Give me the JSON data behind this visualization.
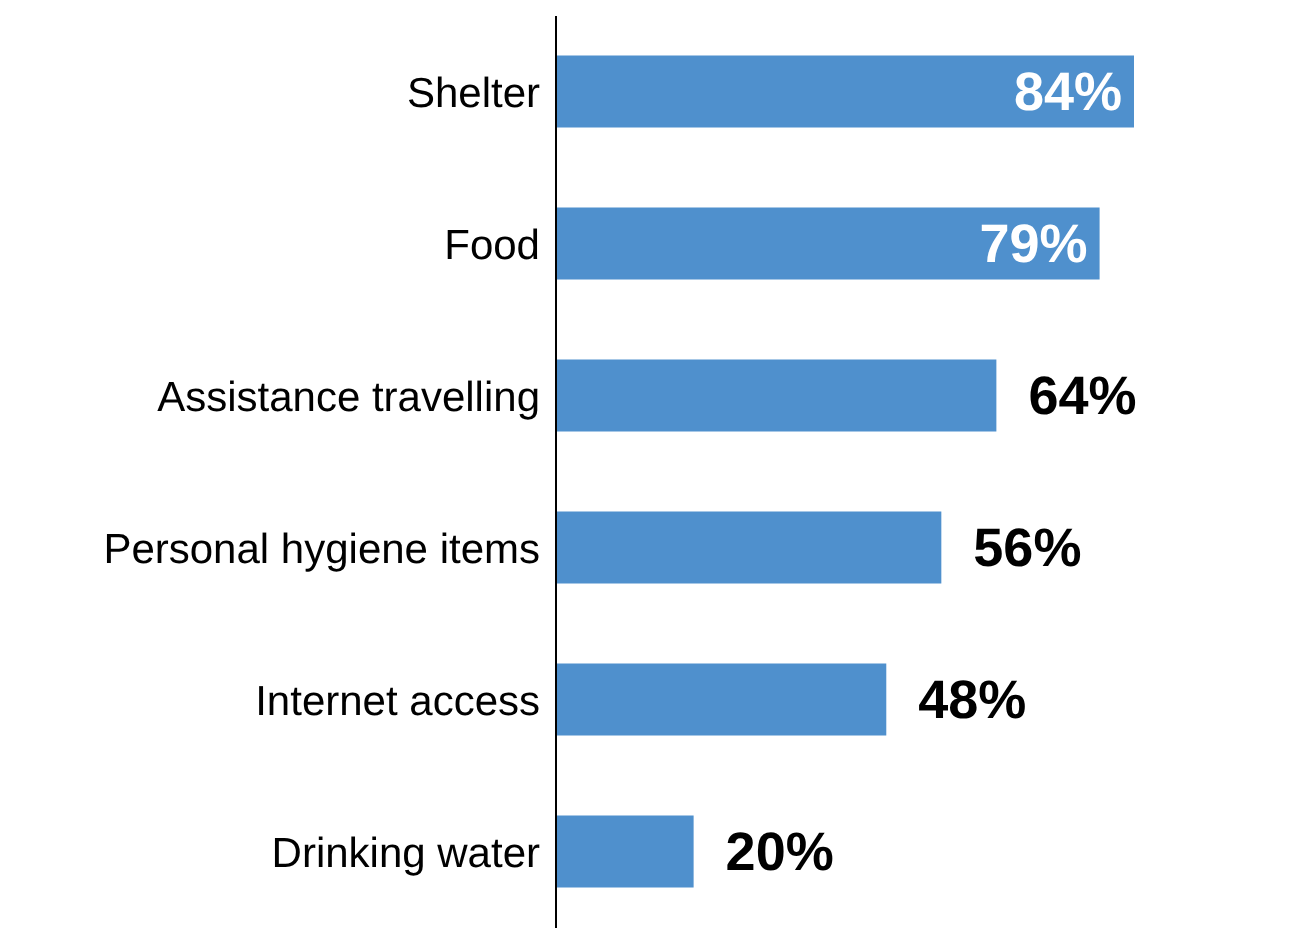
{
  "chart_data": {
    "type": "bar",
    "orientation": "horizontal",
    "categories": [
      "Shelter",
      "Food",
      "Assistance travelling",
      "Personal hygiene items",
      "Internet access",
      "Drinking water"
    ],
    "values": [
      84,
      79,
      64,
      56,
      48,
      20
    ],
    "value_labels": [
      "84%",
      "79%",
      "64%",
      "56%",
      "48%",
      "20%"
    ],
    "color": "#4f90cd",
    "grid": false,
    "legend": false
  }
}
